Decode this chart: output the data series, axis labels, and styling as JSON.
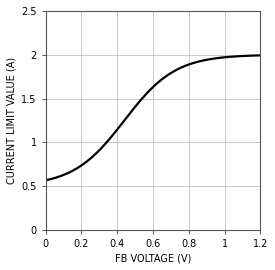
{
  "title": "",
  "xlabel": "FB VOLTAGE (V)",
  "ylabel": "CURRENT LIMIT VALUE (A)",
  "xlim": [
    0,
    1.2
  ],
  "ylim": [
    0,
    2.5
  ],
  "xticks": [
    0,
    0.2,
    0.4,
    0.6,
    0.8,
    1.0,
    1.2
  ],
  "yticks": [
    0,
    0.5,
    1.0,
    1.5,
    2.0,
    2.5
  ],
  "line_color": "#000000",
  "line_width": 1.6,
  "grid_color": "#c0c0c0",
  "background_color": "#ffffff",
  "curve_params": {
    "y_min": 0.5,
    "y_max": 2.0,
    "x_center": 0.44,
    "steepness": 7.0
  }
}
